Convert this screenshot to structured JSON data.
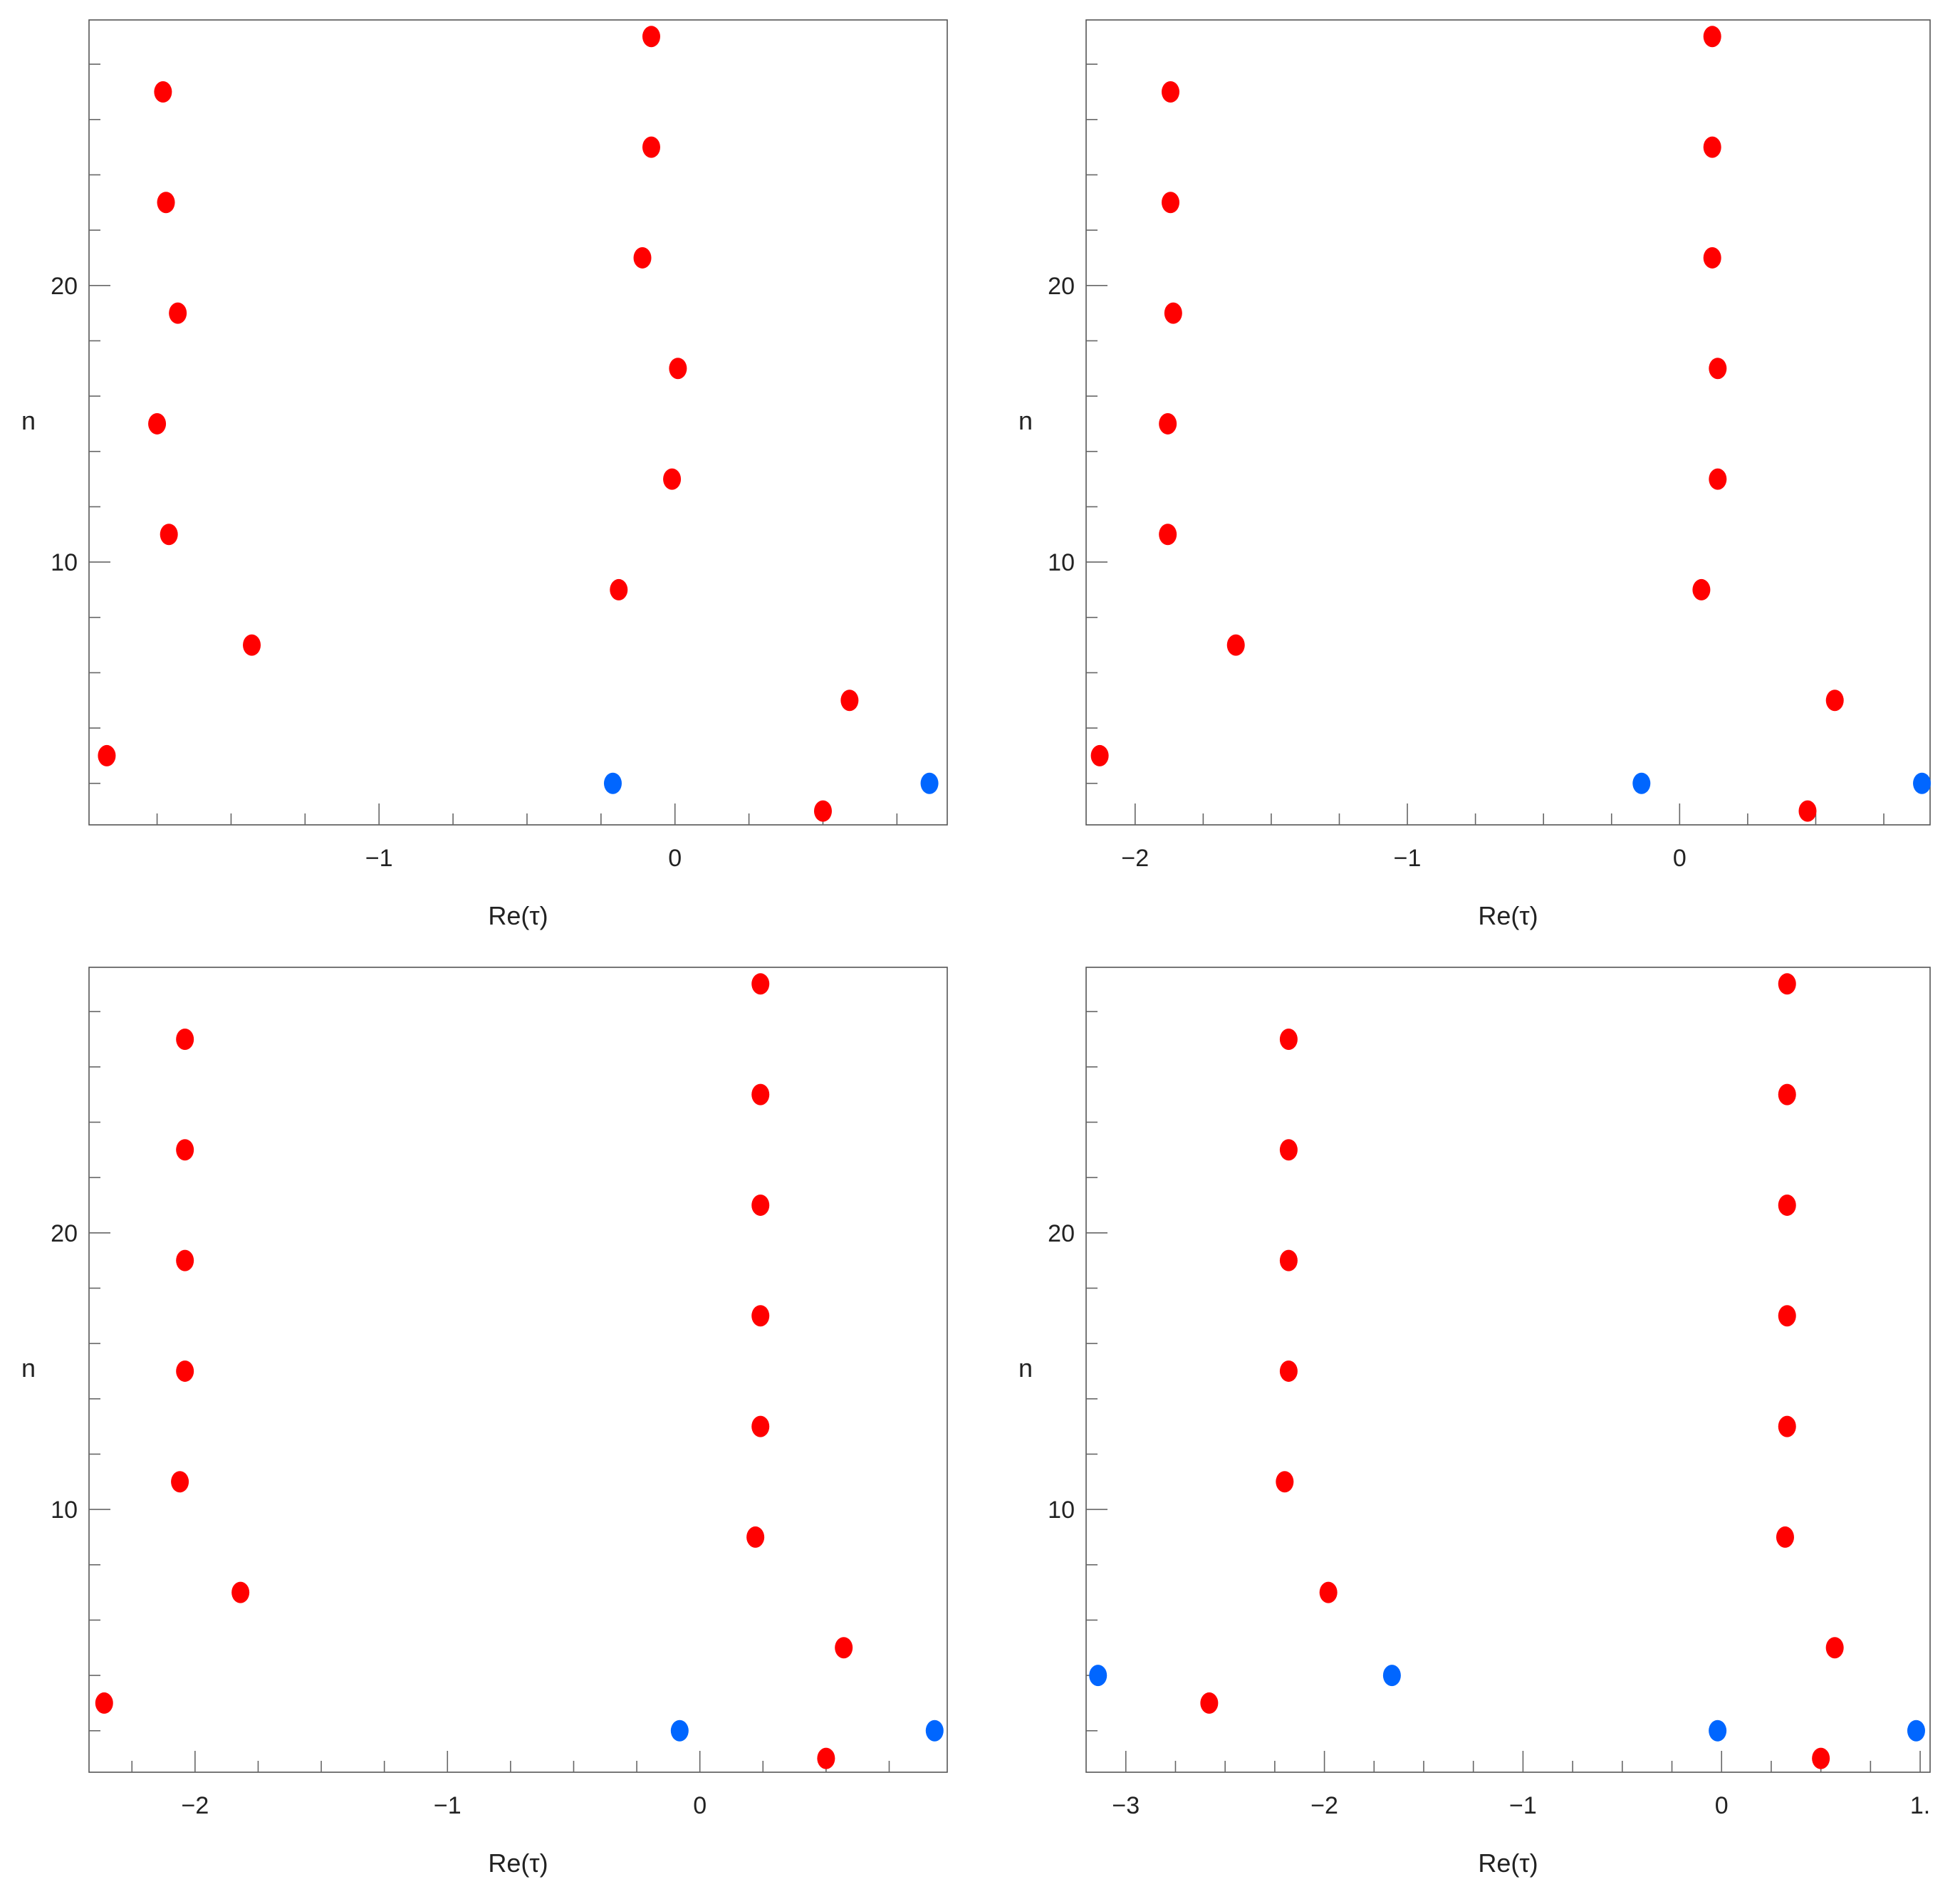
{
  "colors": {
    "red": "#ff0000",
    "blue": "#0066ff",
    "axis": "#555555"
  },
  "chart_data": [
    {
      "type": "scatter",
      "title": "",
      "xlabel": "Re(τ)",
      "ylabel": "n",
      "xlim": [
        -1.98,
        0.92
      ],
      "ylim": [
        0.5,
        29.6
      ],
      "x_ticks": [
        -1,
        0
      ],
      "x_tick_labels": [
        "−1",
        "0"
      ],
      "x_minor_step": 0.25,
      "y_ticks": [
        10,
        20
      ],
      "y_tick_labels": [
        "10",
        "20"
      ],
      "y_minor_step": 2,
      "grid": false,
      "series": [
        {
          "color": "red",
          "points": [
            [
              -1.92,
              3
            ],
            [
              -1.43,
              7
            ],
            [
              -1.71,
              11
            ],
            [
              -1.75,
              15
            ],
            [
              -1.68,
              19
            ],
            [
              -1.72,
              23
            ],
            [
              -1.73,
              27
            ],
            [
              0.5,
              1
            ],
            [
              0.59,
              5
            ],
            [
              -0.19,
              9
            ],
            [
              -0.01,
              13
            ],
            [
              0.01,
              17
            ],
            [
              -0.11,
              21
            ],
            [
              -0.08,
              25
            ],
            [
              -0.08,
              29
            ]
          ]
        },
        {
          "color": "blue",
          "points": [
            [
              -0.21,
              2
            ],
            [
              0.86,
              2
            ]
          ]
        }
      ]
    },
    {
      "type": "scatter",
      "title": "",
      "xlabel": "Re(τ)",
      "ylabel": "n",
      "xlim": [
        -2.18,
        0.92
      ],
      "ylim": [
        0.5,
        29.6
      ],
      "x_ticks": [
        -2,
        -1,
        0
      ],
      "x_tick_labels": [
        "−2",
        "−1",
        "0"
      ],
      "x_minor_step": 0.25,
      "y_ticks": [
        10,
        20
      ],
      "y_tick_labels": [
        "10",
        "20"
      ],
      "y_minor_step": 2,
      "grid": false,
      "series": [
        {
          "color": "red",
          "points": [
            [
              -2.13,
              3
            ],
            [
              -1.63,
              7
            ],
            [
              -1.88,
              11
            ],
            [
              -1.88,
              15
            ],
            [
              -1.86,
              19
            ],
            [
              -1.87,
              23
            ],
            [
              -1.87,
              27
            ],
            [
              0.47,
              1
            ],
            [
              0.57,
              5
            ],
            [
              0.08,
              9
            ],
            [
              0.14,
              13
            ],
            [
              0.14,
              17
            ],
            [
              0.12,
              21
            ],
            [
              0.12,
              25
            ],
            [
              0.12,
              29
            ]
          ]
        },
        {
          "color": "blue",
          "points": [
            [
              -0.14,
              2
            ],
            [
              0.89,
              2
            ]
          ]
        }
      ]
    },
    {
      "type": "scatter",
      "title": "",
      "xlabel": "Re(τ)",
      "ylabel": "n",
      "xlim": [
        -2.42,
        0.98
      ],
      "ylim": [
        0.5,
        29.6
      ],
      "x_ticks": [
        -2,
        -1,
        0
      ],
      "x_tick_labels": [
        "−2",
        "−1",
        "0"
      ],
      "x_minor_step": 0.25,
      "y_ticks": [
        10,
        20
      ],
      "y_tick_labels": [
        "10",
        "20"
      ],
      "y_minor_step": 2,
      "grid": false,
      "series": [
        {
          "color": "red",
          "points": [
            [
              -2.36,
              3
            ],
            [
              -1.82,
              7
            ],
            [
              -2.06,
              11
            ],
            [
              -2.04,
              15
            ],
            [
              -2.04,
              19
            ],
            [
              -2.04,
              23
            ],
            [
              -2.04,
              27
            ],
            [
              0.5,
              1
            ],
            [
              0.57,
              5
            ],
            [
              0.22,
              9
            ],
            [
              0.24,
              13
            ],
            [
              0.24,
              17
            ],
            [
              0.24,
              21
            ],
            [
              0.24,
              25
            ],
            [
              0.24,
              29
            ]
          ]
        },
        {
          "color": "blue",
          "points": [
            [
              -0.08,
              2
            ],
            [
              0.93,
              2
            ]
          ]
        }
      ]
    },
    {
      "type": "scatter",
      "title": "",
      "xlabel": "Re(τ)",
      "ylabel": "n",
      "xlim": [
        -3.2,
        1.05
      ],
      "ylim": [
        0.5,
        29.6
      ],
      "x_ticks": [
        -3,
        -2,
        -1,
        0,
        1
      ],
      "x_tick_labels": [
        "−3",
        "−2",
        "−1",
        "0",
        "1."
      ],
      "x_minor_step": 0.25,
      "y_ticks": [
        10,
        20
      ],
      "y_tick_labels": [
        "10",
        "20"
      ],
      "y_minor_step": 2,
      "grid": false,
      "series": [
        {
          "color": "red",
          "points": [
            [
              -2.58,
              3
            ],
            [
              -1.98,
              7
            ],
            [
              -2.2,
              11
            ],
            [
              -2.18,
              15
            ],
            [
              -2.18,
              19
            ],
            [
              -2.18,
              23
            ],
            [
              -2.18,
              27
            ],
            [
              0.5,
              1
            ],
            [
              0.57,
              5
            ],
            [
              0.32,
              9
            ],
            [
              0.33,
              13
            ],
            [
              0.33,
              17
            ],
            [
              0.33,
              21
            ],
            [
              0.33,
              25
            ],
            [
              0.33,
              29
            ]
          ]
        },
        {
          "color": "blue",
          "points": [
            [
              -3.14,
              4
            ],
            [
              -1.66,
              4
            ],
            [
              -0.02,
              2
            ],
            [
              0.98,
              2
            ]
          ]
        }
      ]
    }
  ]
}
